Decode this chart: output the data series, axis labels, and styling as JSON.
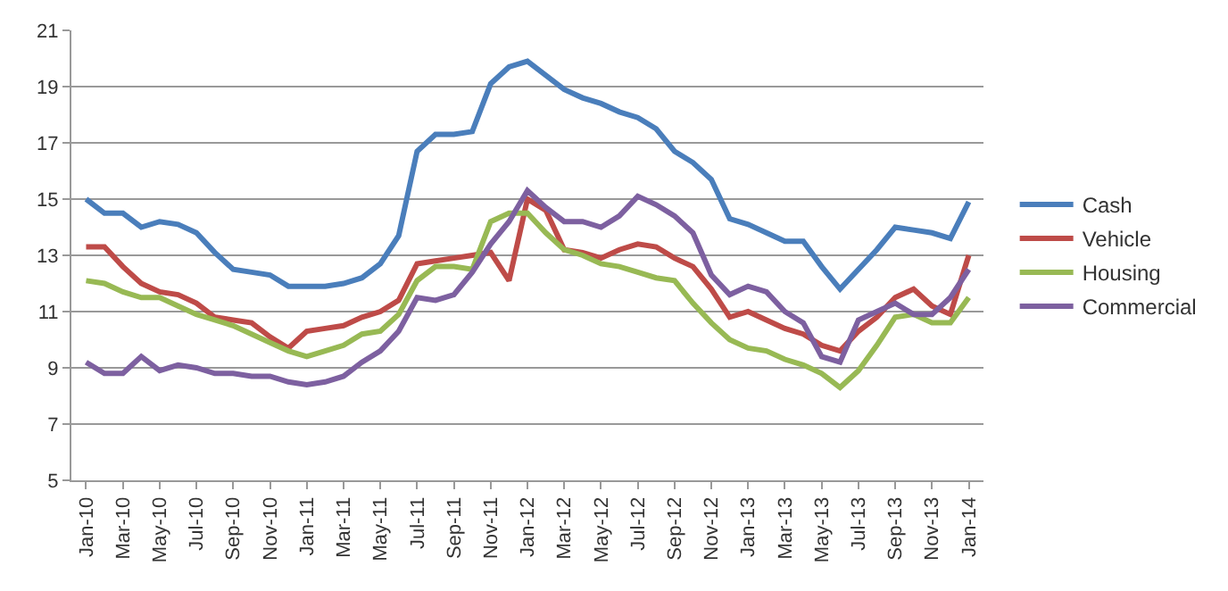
{
  "chart_data": {
    "type": "line",
    "categories": [
      "Jan-10",
      null,
      "Mar-10",
      null,
      "May-10",
      null,
      "Jul-10",
      null,
      "Sep-10",
      null,
      "Nov-10",
      null,
      "Jan-11",
      null,
      "Mar-11",
      null,
      "May-11",
      null,
      "Jul-11",
      null,
      "Sep-11",
      null,
      "Nov-11",
      null,
      "Jan-12",
      null,
      "Mar-12",
      null,
      "May-12",
      null,
      "Jul-12",
      null,
      "Sep-12",
      null,
      "Nov-12",
      null,
      "Jan-13",
      null,
      "Mar-13",
      null,
      "May-13",
      null,
      "Jul-13",
      null,
      "Sep-13",
      null,
      "Nov-13",
      null,
      "Jan-14"
    ],
    "series": [
      {
        "name": "Cash",
        "color": "#4a7ebb",
        "values": [
          15.0,
          14.5,
          14.5,
          14.0,
          14.2,
          14.1,
          13.8,
          13.1,
          12.5,
          12.4,
          12.3,
          11.9,
          11.9,
          11.9,
          12.0,
          12.2,
          12.7,
          13.7,
          16.7,
          17.3,
          17.3,
          17.4,
          19.1,
          19.7,
          19.9,
          19.4,
          18.9,
          18.6,
          18.4,
          18.1,
          17.9,
          17.5,
          16.7,
          16.3,
          15.7,
          14.3,
          14.1,
          13.8,
          13.5,
          13.5,
          12.6,
          11.8,
          12.5,
          13.2,
          14.0,
          13.9,
          13.8,
          13.6,
          14.9
        ]
      },
      {
        "name": "Vehicle",
        "color": "#be4b48",
        "values": [
          13.3,
          13.3,
          12.6,
          12.0,
          11.7,
          11.6,
          11.3,
          10.8,
          10.7,
          10.6,
          10.1,
          9.7,
          10.3,
          10.4,
          10.5,
          10.8,
          11.0,
          11.4,
          12.7,
          12.8,
          12.9,
          13.0,
          13.1,
          12.1,
          15.0,
          14.6,
          13.2,
          13.1,
          12.9,
          13.2,
          13.4,
          13.3,
          12.9,
          12.6,
          11.8,
          10.8,
          11.0,
          10.7,
          10.4,
          10.2,
          9.8,
          9.6,
          10.3,
          10.8,
          11.5,
          11.8,
          11.2,
          10.9,
          13.0
        ]
      },
      {
        "name": "Housing",
        "color": "#98b954",
        "values": [
          12.1,
          12.0,
          11.7,
          11.5,
          11.5,
          11.2,
          10.9,
          10.7,
          10.5,
          10.2,
          9.9,
          9.6,
          9.4,
          9.6,
          9.8,
          10.2,
          10.3,
          10.9,
          12.1,
          12.6,
          12.6,
          12.5,
          14.2,
          14.5,
          14.5,
          13.8,
          13.2,
          13.0,
          12.7,
          12.6,
          12.4,
          12.2,
          12.1,
          11.3,
          10.6,
          10.0,
          9.7,
          9.6,
          9.3,
          9.1,
          8.8,
          8.3,
          8.9,
          9.8,
          10.8,
          10.9,
          10.6,
          10.6,
          11.5
        ]
      },
      {
        "name": "Commercial",
        "color": "#7d60a0",
        "values": [
          9.2,
          8.8,
          8.8,
          9.4,
          8.9,
          9.1,
          9.0,
          8.8,
          8.8,
          8.7,
          8.7,
          8.5,
          8.4,
          8.5,
          8.7,
          9.2,
          9.6,
          10.3,
          11.5,
          11.4,
          11.6,
          12.4,
          13.4,
          14.2,
          15.3,
          14.7,
          14.2,
          14.2,
          14.0,
          14.4,
          15.1,
          14.8,
          14.4,
          13.8,
          12.3,
          11.6,
          11.9,
          11.7,
          11.0,
          10.6,
          9.4,
          9.2,
          10.7,
          11.0,
          11.3,
          10.9,
          10.9,
          11.5,
          12.5
        ]
      }
    ],
    "ylim": [
      5,
      21
    ],
    "yticks": [
      5,
      7,
      9,
      11,
      13,
      15,
      17,
      19,
      21
    ],
    "grid": "y",
    "legend": "right",
    "marker": "none",
    "line_style": "solid"
  }
}
